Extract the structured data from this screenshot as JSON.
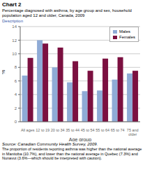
{
  "chart_data": {
    "type": "bar",
    "title": "Chart 2",
    "subtitle": "Percentage diagnosed with asthma, by age group and sex, household\npopulation aged 12 and older, Canada, 2009",
    "annotations": [
      "Description",
      "Source: Canadian Community Health Survey, 2009.",
      "The proportion of residents reporting asthma was higher than the national average in Manitoba (10.7%), and lower than the national average in Quebec (7.3%) and Nunavut (3.6%—which should be interpreted with caution)."
    ],
    "xlabel": "Age group",
    "ylabel": "%",
    "categories": [
      "All ages",
      "12 to 19",
      "20 to 34",
      "35 to 44",
      "45 to 54",
      "55 to 64",
      "65 to 74",
      "75 and\nolder"
    ],
    "series": [
      {
        "name": "Males",
        "color": "#8fabd6",
        "values": [
          6.8,
          12.0,
          8.0,
          5.8,
          4.5,
          4.6,
          6.2,
          7.1
        ]
      },
      {
        "name": "Females",
        "color": "#7b1040",
        "values": [
          9.4,
          11.5,
          10.9,
          8.9,
          7.5,
          9.3,
          9.5,
          7.5
        ]
      }
    ],
    "ylim": [
      0,
      14
    ],
    "yticks": [
      0,
      2,
      4,
      6,
      8,
      10,
      12,
      14
    ],
    "grid": true,
    "legend": "upper right"
  }
}
